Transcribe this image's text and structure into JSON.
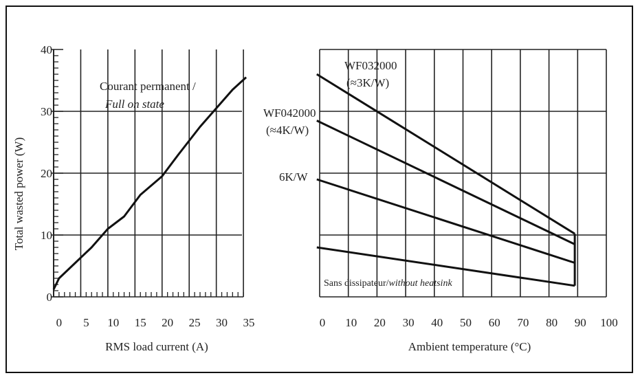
{
  "chart_data": [
    {
      "type": "line",
      "title": "",
      "xlabel": "RMS load current (A)",
      "ylabel": "Total wasted power (W)",
      "xlim": [
        -1,
        35
      ],
      "ylim": [
        0,
        40
      ],
      "x_ticks": [
        "0",
        "5",
        "10",
        "15",
        "20",
        "25",
        "30",
        "35"
      ],
      "y_ticks": [
        "0",
        "10",
        "20",
        "30",
        "40"
      ],
      "grid": true,
      "annotations": [
        "Courant permanent /",
        "Full on state"
      ],
      "series": [
        {
          "x": [
            -1,
            0,
            3,
            6,
            9,
            12,
            15,
            19,
            22,
            26,
            29,
            32,
            34.5
          ],
          "values": [
            1.2,
            3,
            5.5,
            8,
            11,
            13,
            16.5,
            19.5,
            23,
            27.5,
            30.5,
            33.5,
            35.5
          ]
        }
      ]
    },
    {
      "type": "line",
      "title": "",
      "xlabel": "Ambient temperature (°C)",
      "ylabel": "",
      "xlim": [
        0,
        100
      ],
      "ylim": [
        0,
        40
      ],
      "x_ticks": [
        "0",
        "10",
        "20",
        "30",
        "40",
        "50",
        "60",
        "70",
        "80",
        "90",
        "100"
      ],
      "grid": true,
      "series": [
        {
          "label": "WF032000",
          "sublabel": "(≈3K/W)",
          "x": [
            -1,
            89
          ],
          "values": [
            36,
            10.2
          ]
        },
        {
          "label": "WF042000",
          "sublabel": "(≈4K/W)",
          "x": [
            -1,
            89
          ],
          "values": [
            28.5,
            8.5
          ]
        },
        {
          "label": "6K/W",
          "x": [
            -1,
            89
          ],
          "values": [
            19,
            5.5
          ]
        },
        {
          "label": "Sans dissipateur/",
          "label_italic": "without heatsink",
          "x": [
            -1,
            89
          ],
          "values": [
            8,
            1.8
          ]
        }
      ]
    }
  ]
}
